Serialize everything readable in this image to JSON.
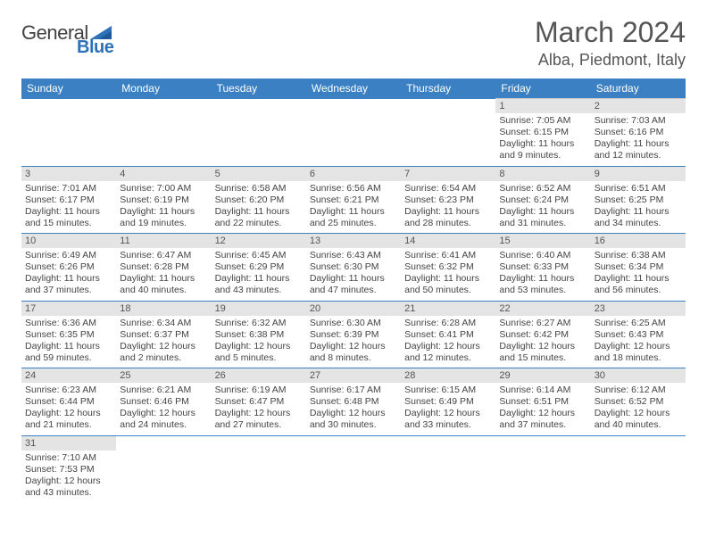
{
  "brand": {
    "name1": "General",
    "name2": "Blue"
  },
  "title": "March 2024",
  "location": "Alba, Piedmont, Italy",
  "colors": {
    "header_bg": "#3a80c2",
    "header_text": "#ffffff",
    "daynum_bg": "#e4e4e4",
    "border": "#3a80c2",
    "text": "#444444"
  },
  "day_headers": [
    "Sunday",
    "Monday",
    "Tuesday",
    "Wednesday",
    "Thursday",
    "Friday",
    "Saturday"
  ],
  "weeks": [
    [
      null,
      null,
      null,
      null,
      null,
      {
        "n": "1",
        "sr": "Sunrise: 7:05 AM",
        "ss": "Sunset: 6:15 PM",
        "dl": "Daylight: 11 hours and 9 minutes."
      },
      {
        "n": "2",
        "sr": "Sunrise: 7:03 AM",
        "ss": "Sunset: 6:16 PM",
        "dl": "Daylight: 11 hours and 12 minutes."
      }
    ],
    [
      {
        "n": "3",
        "sr": "Sunrise: 7:01 AM",
        "ss": "Sunset: 6:17 PM",
        "dl": "Daylight: 11 hours and 15 minutes."
      },
      {
        "n": "4",
        "sr": "Sunrise: 7:00 AM",
        "ss": "Sunset: 6:19 PM",
        "dl": "Daylight: 11 hours and 19 minutes."
      },
      {
        "n": "5",
        "sr": "Sunrise: 6:58 AM",
        "ss": "Sunset: 6:20 PM",
        "dl": "Daylight: 11 hours and 22 minutes."
      },
      {
        "n": "6",
        "sr": "Sunrise: 6:56 AM",
        "ss": "Sunset: 6:21 PM",
        "dl": "Daylight: 11 hours and 25 minutes."
      },
      {
        "n": "7",
        "sr": "Sunrise: 6:54 AM",
        "ss": "Sunset: 6:23 PM",
        "dl": "Daylight: 11 hours and 28 minutes."
      },
      {
        "n": "8",
        "sr": "Sunrise: 6:52 AM",
        "ss": "Sunset: 6:24 PM",
        "dl": "Daylight: 11 hours and 31 minutes."
      },
      {
        "n": "9",
        "sr": "Sunrise: 6:51 AM",
        "ss": "Sunset: 6:25 PM",
        "dl": "Daylight: 11 hours and 34 minutes."
      }
    ],
    [
      {
        "n": "10",
        "sr": "Sunrise: 6:49 AM",
        "ss": "Sunset: 6:26 PM",
        "dl": "Daylight: 11 hours and 37 minutes."
      },
      {
        "n": "11",
        "sr": "Sunrise: 6:47 AM",
        "ss": "Sunset: 6:28 PM",
        "dl": "Daylight: 11 hours and 40 minutes."
      },
      {
        "n": "12",
        "sr": "Sunrise: 6:45 AM",
        "ss": "Sunset: 6:29 PM",
        "dl": "Daylight: 11 hours and 43 minutes."
      },
      {
        "n": "13",
        "sr": "Sunrise: 6:43 AM",
        "ss": "Sunset: 6:30 PM",
        "dl": "Daylight: 11 hours and 47 minutes."
      },
      {
        "n": "14",
        "sr": "Sunrise: 6:41 AM",
        "ss": "Sunset: 6:32 PM",
        "dl": "Daylight: 11 hours and 50 minutes."
      },
      {
        "n": "15",
        "sr": "Sunrise: 6:40 AM",
        "ss": "Sunset: 6:33 PM",
        "dl": "Daylight: 11 hours and 53 minutes."
      },
      {
        "n": "16",
        "sr": "Sunrise: 6:38 AM",
        "ss": "Sunset: 6:34 PM",
        "dl": "Daylight: 11 hours and 56 minutes."
      }
    ],
    [
      {
        "n": "17",
        "sr": "Sunrise: 6:36 AM",
        "ss": "Sunset: 6:35 PM",
        "dl": "Daylight: 11 hours and 59 minutes."
      },
      {
        "n": "18",
        "sr": "Sunrise: 6:34 AM",
        "ss": "Sunset: 6:37 PM",
        "dl": "Daylight: 12 hours and 2 minutes."
      },
      {
        "n": "19",
        "sr": "Sunrise: 6:32 AM",
        "ss": "Sunset: 6:38 PM",
        "dl": "Daylight: 12 hours and 5 minutes."
      },
      {
        "n": "20",
        "sr": "Sunrise: 6:30 AM",
        "ss": "Sunset: 6:39 PM",
        "dl": "Daylight: 12 hours and 8 minutes."
      },
      {
        "n": "21",
        "sr": "Sunrise: 6:28 AM",
        "ss": "Sunset: 6:41 PM",
        "dl": "Daylight: 12 hours and 12 minutes."
      },
      {
        "n": "22",
        "sr": "Sunrise: 6:27 AM",
        "ss": "Sunset: 6:42 PM",
        "dl": "Daylight: 12 hours and 15 minutes."
      },
      {
        "n": "23",
        "sr": "Sunrise: 6:25 AM",
        "ss": "Sunset: 6:43 PM",
        "dl": "Daylight: 12 hours and 18 minutes."
      }
    ],
    [
      {
        "n": "24",
        "sr": "Sunrise: 6:23 AM",
        "ss": "Sunset: 6:44 PM",
        "dl": "Daylight: 12 hours and 21 minutes."
      },
      {
        "n": "25",
        "sr": "Sunrise: 6:21 AM",
        "ss": "Sunset: 6:46 PM",
        "dl": "Daylight: 12 hours and 24 minutes."
      },
      {
        "n": "26",
        "sr": "Sunrise: 6:19 AM",
        "ss": "Sunset: 6:47 PM",
        "dl": "Daylight: 12 hours and 27 minutes."
      },
      {
        "n": "27",
        "sr": "Sunrise: 6:17 AM",
        "ss": "Sunset: 6:48 PM",
        "dl": "Daylight: 12 hours and 30 minutes."
      },
      {
        "n": "28",
        "sr": "Sunrise: 6:15 AM",
        "ss": "Sunset: 6:49 PM",
        "dl": "Daylight: 12 hours and 33 minutes."
      },
      {
        "n": "29",
        "sr": "Sunrise: 6:14 AM",
        "ss": "Sunset: 6:51 PM",
        "dl": "Daylight: 12 hours and 37 minutes."
      },
      {
        "n": "30",
        "sr": "Sunrise: 6:12 AM",
        "ss": "Sunset: 6:52 PM",
        "dl": "Daylight: 12 hours and 40 minutes."
      }
    ],
    [
      {
        "n": "31",
        "sr": "Sunrise: 7:10 AM",
        "ss": "Sunset: 7:53 PM",
        "dl": "Daylight: 12 hours and 43 minutes."
      },
      null,
      null,
      null,
      null,
      null,
      null
    ]
  ]
}
